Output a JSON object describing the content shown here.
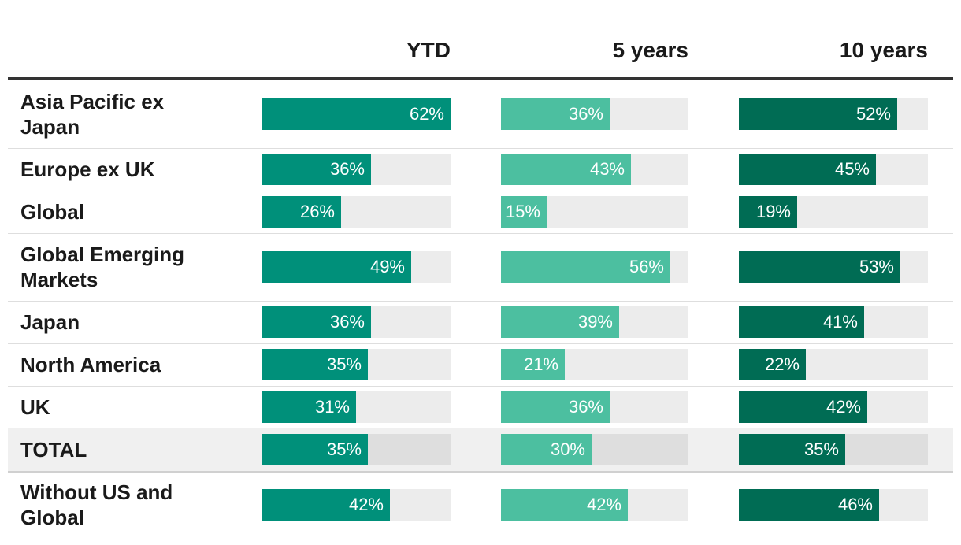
{
  "chart_data": {
    "type": "table",
    "columns": [
      "YTD",
      "5 years",
      "10 years"
    ],
    "colors": [
      "#00907a",
      "#4cbfa0",
      "#006c54"
    ],
    "value_max": 62,
    "rows": [
      {
        "label": "Asia Pacific ex Japan",
        "values": [
          62,
          36,
          52
        ],
        "display": [
          "62%",
          "36%",
          "52%"
        ]
      },
      {
        "label": "Europe ex UK",
        "values": [
          36,
          43,
          45
        ],
        "display": [
          "36%",
          "43%",
          "45%"
        ]
      },
      {
        "label": "Global",
        "values": [
          26,
          15,
          19
        ],
        "display": [
          "26%",
          "15%",
          "19%"
        ]
      },
      {
        "label": "Global Emerging Markets",
        "values": [
          49,
          56,
          53
        ],
        "display": [
          "49%",
          "56%",
          "53%"
        ]
      },
      {
        "label": "Japan",
        "values": [
          36,
          39,
          41
        ],
        "display": [
          "36%",
          "39%",
          "41%"
        ]
      },
      {
        "label": "North America",
        "values": [
          35,
          21,
          22
        ],
        "display": [
          "35%",
          "21%",
          "22%"
        ]
      },
      {
        "label": "UK",
        "values": [
          31,
          36,
          42
        ],
        "display": [
          "31%",
          "36%",
          "42%"
        ]
      },
      {
        "label": "TOTAL",
        "values": [
          35,
          30,
          35
        ],
        "display": [
          "35%",
          "30%",
          "35%"
        ],
        "highlight": true
      },
      {
        "label": "Without US and Global",
        "values": [
          42,
          42,
          46
        ],
        "display": [
          "42%",
          "42%",
          "46%"
        ]
      }
    ]
  }
}
